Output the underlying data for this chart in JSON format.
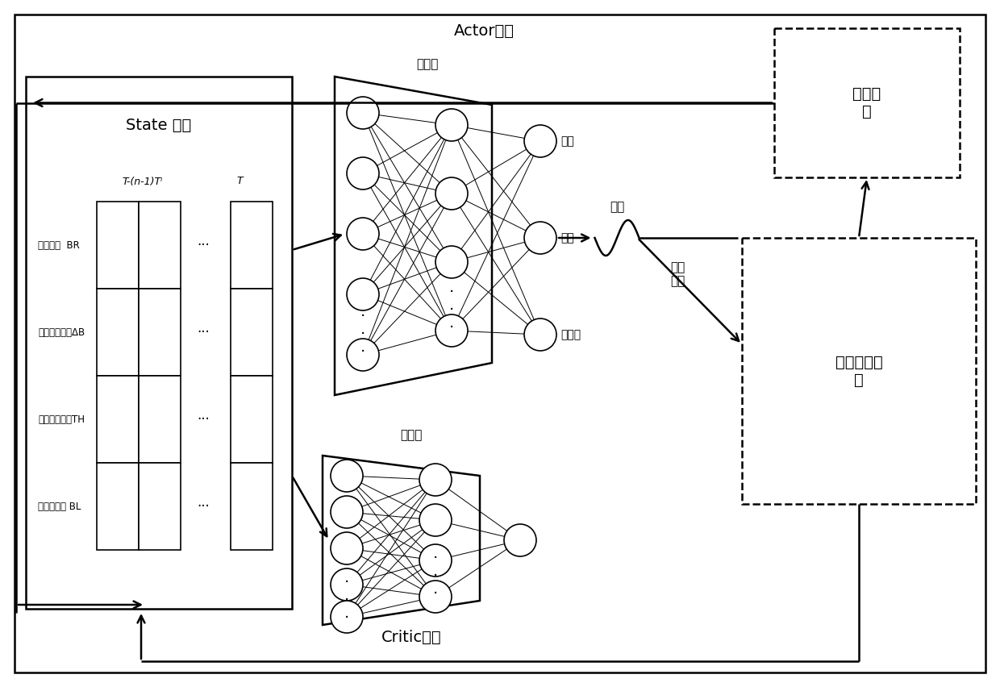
{
  "bg_color": "#ffffff",
  "state_label": "State 矩阵",
  "state_col1_label": "T-(n-1)Tⁱ",
  "state_col2_label": "T",
  "state_row_labels": [
    "码率选择  BR",
    "缓冲区变化量ΔB",
    "平均发送速率TH",
    "缓冲区长度 BL"
  ],
  "actor_label": "Actor网络",
  "actor_hidden_label": "隐藏层",
  "critic_label": "Critic网络",
  "critic_hidden_label": "隐藏层",
  "output_labels": [
    "输出",
    "均値",
    "标准差"
  ],
  "sampling_label": "采样",
  "bitrate_label": "码率\n选择",
  "reward_label": "奖励函\n数",
  "sim_label": "仿真训练环\n境"
}
